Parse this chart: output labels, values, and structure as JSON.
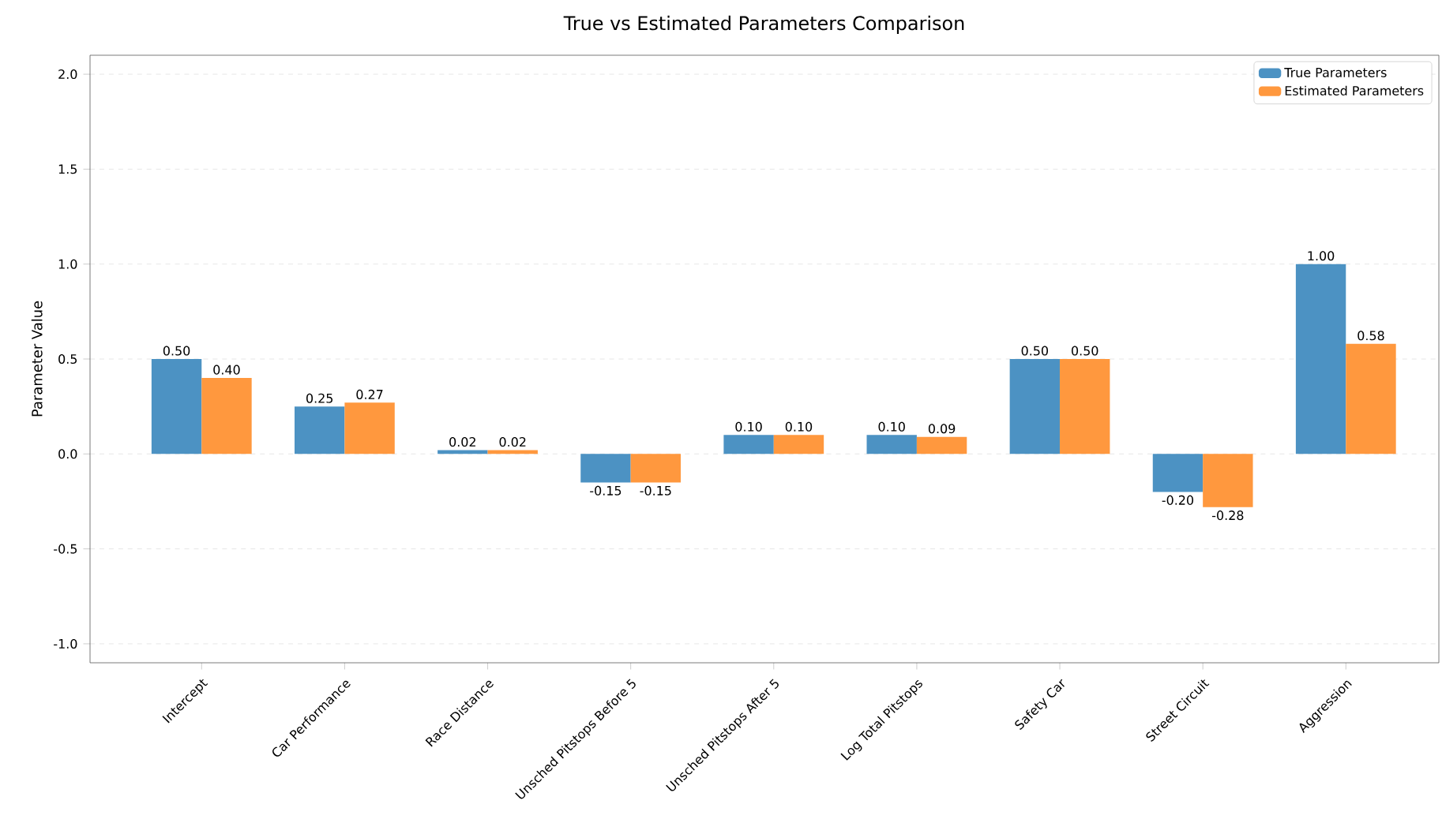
{
  "chart_data": {
    "type": "bar",
    "title": "True vs Estimated Parameters Comparison",
    "ylabel": "Parameter Value",
    "categories": [
      "Intercept",
      "Car Performance",
      "Race Distance",
      "Unsched Pitstops Before 5",
      "Unsched Pitstops After 5",
      "Log Total Pitstops",
      "Safety Car",
      "Street Circuit",
      "Aggression"
    ],
    "series": [
      {
        "name": "True Parameters",
        "color": "#4c92c3",
        "values": [
          0.5,
          0.25,
          0.02,
          -0.15,
          0.1,
          0.1,
          0.5,
          -0.2,
          1.0
        ],
        "value_labels": [
          "0.50",
          "0.25",
          "0.02",
          "-0.15",
          "0.10",
          "0.10",
          "0.50",
          "-0.20",
          "1.00"
        ]
      },
      {
        "name": "Estimated Parameters",
        "color": "#ff983e",
        "values": [
          0.4,
          0.27,
          0.02,
          -0.15,
          0.1,
          0.09,
          0.5,
          -0.28,
          0.58
        ],
        "value_labels": [
          "0.40",
          "0.27",
          "0.02",
          "-0.15",
          "0.10",
          "0.09",
          "0.50",
          "-0.28",
          "0.58"
        ]
      }
    ],
    "ylim": [
      -1.1,
      2.1
    ],
    "yticks": [
      {
        "value": -1.0,
        "label": "-1.0"
      },
      {
        "value": -0.5,
        "label": "-0.5"
      },
      {
        "value": 0.0,
        "label": "0.0"
      },
      {
        "value": 0.5,
        "label": "0.5"
      },
      {
        "value": 1.0,
        "label": "1.0"
      },
      {
        "value": 1.5,
        "label": "1.5"
      },
      {
        "value": 2.0,
        "label": "2.0"
      }
    ],
    "grid": "y",
    "legend": "top right"
  }
}
